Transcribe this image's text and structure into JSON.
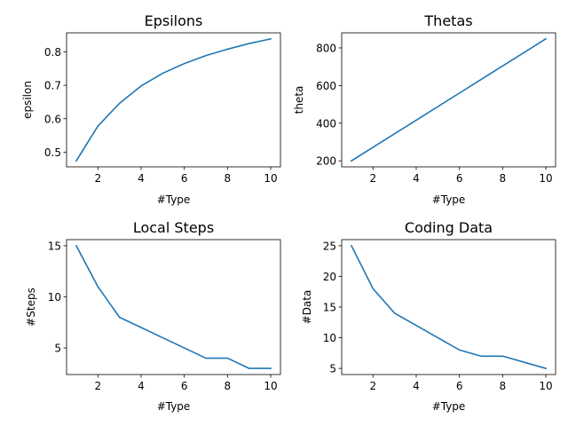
{
  "chart_data": [
    {
      "type": "line",
      "title": "Epsilons",
      "xlabel": "#Type",
      "ylabel": "epsilon",
      "x": [
        1,
        2,
        3,
        4,
        5,
        6,
        7,
        8,
        9,
        10
      ],
      "y": [
        0.474,
        0.578,
        0.646,
        0.698,
        0.736,
        0.765,
        0.789,
        0.808,
        0.825,
        0.839
      ],
      "xlim": [
        0.55,
        10.45
      ],
      "ylim": [
        0.456,
        0.857
      ],
      "xticks": [
        2,
        4,
        6,
        8,
        10
      ],
      "xtick_labels": [
        "2",
        "4",
        "6",
        "8",
        "10"
      ],
      "yticks": [
        0.5,
        0.6,
        0.7,
        0.8
      ],
      "ytick_labels": [
        "0.5",
        "0.6",
        "0.7",
        "0.8"
      ],
      "grid": false,
      "color": "#1f77b4"
    },
    {
      "type": "line",
      "title": "Thetas",
      "xlabel": "#Type",
      "ylabel": "theta",
      "x": [
        1,
        2,
        3,
        4,
        5,
        6,
        7,
        8,
        9,
        10
      ],
      "y": [
        200,
        272,
        344,
        416,
        488,
        560,
        632,
        704,
        776,
        848
      ],
      "xlim": [
        0.55,
        10.45
      ],
      "ylim": [
        168,
        880
      ],
      "xticks": [
        2,
        4,
        6,
        8,
        10
      ],
      "xtick_labels": [
        "2",
        "4",
        "6",
        "8",
        "10"
      ],
      "yticks": [
        200,
        400,
        600,
        800
      ],
      "ytick_labels": [
        "200",
        "400",
        "600",
        "800"
      ],
      "grid": false,
      "color": "#1f77b4"
    },
    {
      "type": "line",
      "title": "Local Steps",
      "xlabel": "#Type",
      "ylabel": "#Steps",
      "x": [
        1,
        2,
        3,
        4,
        5,
        6,
        7,
        8,
        9,
        10
      ],
      "y": [
        15,
        11,
        8,
        7,
        6,
        5,
        4,
        4,
        3,
        3
      ],
      "xlim": [
        0.55,
        10.45
      ],
      "ylim": [
        2.4,
        15.6
      ],
      "xticks": [
        2,
        4,
        6,
        8,
        10
      ],
      "xtick_labels": [
        "2",
        "4",
        "6",
        "8",
        "10"
      ],
      "yticks": [
        5,
        10,
        15
      ],
      "ytick_labels": [
        "5",
        "10",
        "15"
      ],
      "grid": false,
      "color": "#1f77b4"
    },
    {
      "type": "line",
      "title": "Coding Data",
      "xlabel": "#Type",
      "ylabel": "#Data",
      "x": [
        1,
        2,
        3,
        4,
        5,
        6,
        7,
        8,
        9,
        10
      ],
      "y": [
        25,
        18,
        14,
        12,
        10,
        8,
        7,
        7,
        6,
        5
      ],
      "xlim": [
        0.55,
        10.45
      ],
      "ylim": [
        4,
        26
      ],
      "xticks": [
        2,
        4,
        6,
        8,
        10
      ],
      "xtick_labels": [
        "2",
        "4",
        "6",
        "8",
        "10"
      ],
      "yticks": [
        5,
        10,
        15,
        20,
        25
      ],
      "ytick_labels": [
        "5",
        "10",
        "15",
        "20",
        "25"
      ],
      "grid": false,
      "color": "#1f77b4"
    }
  ]
}
